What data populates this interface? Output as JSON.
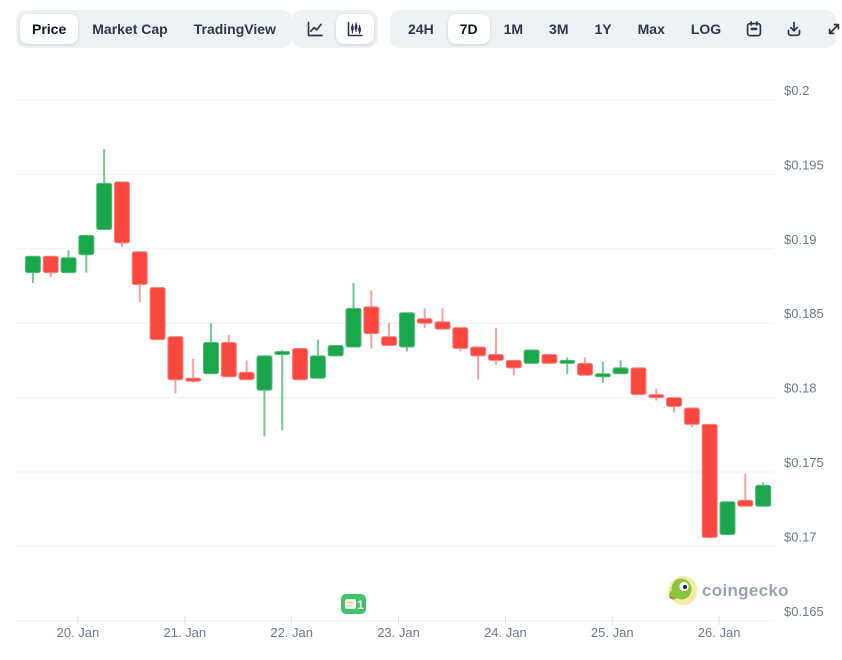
{
  "toolbar": {
    "metric_tabs": [
      {
        "label": "Price",
        "selected": true
      },
      {
        "label": "Market Cap",
        "selected": false
      },
      {
        "label": "TradingView",
        "selected": false
      }
    ],
    "chart_types": [
      {
        "name": "line-chart",
        "selected": false
      },
      {
        "name": "candlestick-chart",
        "selected": true
      }
    ],
    "range_buttons": [
      {
        "label": "24H",
        "selected": false
      },
      {
        "label": "7D",
        "selected": true
      },
      {
        "label": "1M",
        "selected": false
      },
      {
        "label": "3M",
        "selected": false
      },
      {
        "label": "1Y",
        "selected": false
      },
      {
        "label": "Max",
        "selected": false
      },
      {
        "label": "LOG",
        "selected": false
      }
    ],
    "tool_icons": [
      "calendar",
      "download",
      "fullscreen"
    ]
  },
  "watermark": {
    "brand": "coingecko"
  },
  "colors": {
    "up": "#1aa64b",
    "up_border": "#4fbd78",
    "up_wick": "#6fcb93",
    "down": "#fa4841",
    "down_border": "#fc807b",
    "down_wick": "#f9a09c",
    "grid": "#eef0f3",
    "axis_text": "#6e798c",
    "tick_mark": "#dfe3e9",
    "toolbar_bg": "#eff2f5",
    "badge_green": "#3dc565",
    "badge_line_yellow": "#ffd943",
    "watermark_text": "#99a3b1",
    "gecko_green": "#8bc53f",
    "gecko_circle": "#f9eda6"
  },
  "annotation_marker": {
    "type": "news-event",
    "label": "1",
    "candle_index": 18
  },
  "chart_data": {
    "type": "candlestick",
    "title": "7D price candlestick chart",
    "legend": [],
    "grid": true,
    "y_axis": {
      "side": "right",
      "tick_labels": [
        "$0.2",
        "$0.195",
        "$0.19",
        "$0.185",
        "$0.18",
        "$0.175",
        "$0.17",
        "$0.165"
      ],
      "tick_values": [
        0.2,
        0.195,
        0.19,
        0.185,
        0.18,
        0.175,
        0.17,
        0.165
      ],
      "range": [
        0.165,
        0.2
      ]
    },
    "x_axis": {
      "day_labels": [
        "20. Jan",
        "21. Jan",
        "22. Jan",
        "23. Jan",
        "24. Jan",
        "25. Jan",
        "26. Jan"
      ],
      "day_tick_candle_index": [
        2.53,
        8.53,
        14.53,
        20.53,
        26.53,
        32.53,
        38.53
      ],
      "candle_interval_hours": 4
    },
    "ohlc_format": [
      "open",
      "high",
      "low",
      "close"
    ],
    "ohlc": [
      [
        0.1884,
        0.1895,
        0.1877,
        0.1895
      ],
      [
        0.1895,
        0.1895,
        0.1881,
        0.1884
      ],
      [
        0.1884,
        0.1899,
        0.1884,
        0.1894
      ],
      [
        0.1896,
        0.1909,
        0.1884,
        0.1909
      ],
      [
        0.1913,
        0.1967,
        0.1913,
        0.1944
      ],
      [
        0.1945,
        0.1945,
        0.1901,
        0.1904
      ],
      [
        0.1898,
        0.1898,
        0.1864,
        0.1876
      ],
      [
        0.1874,
        0.1874,
        0.1839,
        0.1839
      ],
      [
        0.1841,
        0.1841,
        0.1803,
        0.1812
      ],
      [
        0.1813,
        0.1826,
        0.181,
        0.1811
      ],
      [
        0.1816,
        0.185,
        0.1816,
        0.1837
      ],
      [
        0.1837,
        0.1842,
        0.1814,
        0.1814
      ],
      [
        0.1817,
        0.1825,
        0.1812,
        0.1812
      ],
      [
        0.1805,
        0.1828,
        0.1774,
        0.1828
      ],
      [
        0.183,
        0.1832,
        0.1778,
        0.1831
      ],
      [
        0.1833,
        0.1833,
        0.1812,
        0.1812
      ],
      [
        0.1813,
        0.1839,
        0.1813,
        0.1828
      ],
      [
        0.1828,
        0.1835,
        0.1828,
        0.1835
      ],
      [
        0.1834,
        0.1877,
        0.1834,
        0.186
      ],
      [
        0.1861,
        0.1872,
        0.1833,
        0.1843
      ],
      [
        0.1841,
        0.185,
        0.1835,
        0.1835
      ],
      [
        0.1834,
        0.1857,
        0.1831,
        0.1857
      ],
      [
        0.1853,
        0.186,
        0.1847,
        0.185
      ],
      [
        0.1851,
        0.186,
        0.1846,
        0.1846
      ],
      [
        0.1847,
        0.1847,
        0.1831,
        0.1833
      ],
      [
        0.1834,
        0.1834,
        0.1812,
        0.1828
      ],
      [
        0.1829,
        0.1847,
        0.1822,
        0.1825
      ],
      [
        0.1825,
        0.1825,
        0.1815,
        0.182
      ],
      [
        0.1823,
        0.1832,
        0.1823,
        0.1832
      ],
      [
        0.1829,
        0.1829,
        0.1823,
        0.1823
      ],
      [
        0.1824,
        0.1827,
        0.1816,
        0.1825
      ],
      [
        0.1823,
        0.1827,
        0.1815,
        0.1815
      ],
      [
        0.1814,
        0.1824,
        0.181,
        0.1816
      ],
      [
        0.1816,
        0.1825,
        0.1816,
        0.182
      ],
      [
        0.182,
        0.182,
        0.1802,
        0.1802
      ],
      [
        0.1802,
        0.1806,
        0.1798,
        0.18
      ],
      [
        0.18,
        0.18,
        0.179,
        0.1794
      ],
      [
        0.1793,
        0.1793,
        0.178,
        0.1782
      ],
      [
        0.1782,
        0.1782,
        0.1706,
        0.1706
      ],
      [
        0.1708,
        0.173,
        0.1708,
        0.173
      ],
      [
        0.1731,
        0.1749,
        0.1727,
        0.1727
      ],
      [
        0.1727,
        0.1743,
        0.1727,
        0.1741
      ]
    ]
  }
}
